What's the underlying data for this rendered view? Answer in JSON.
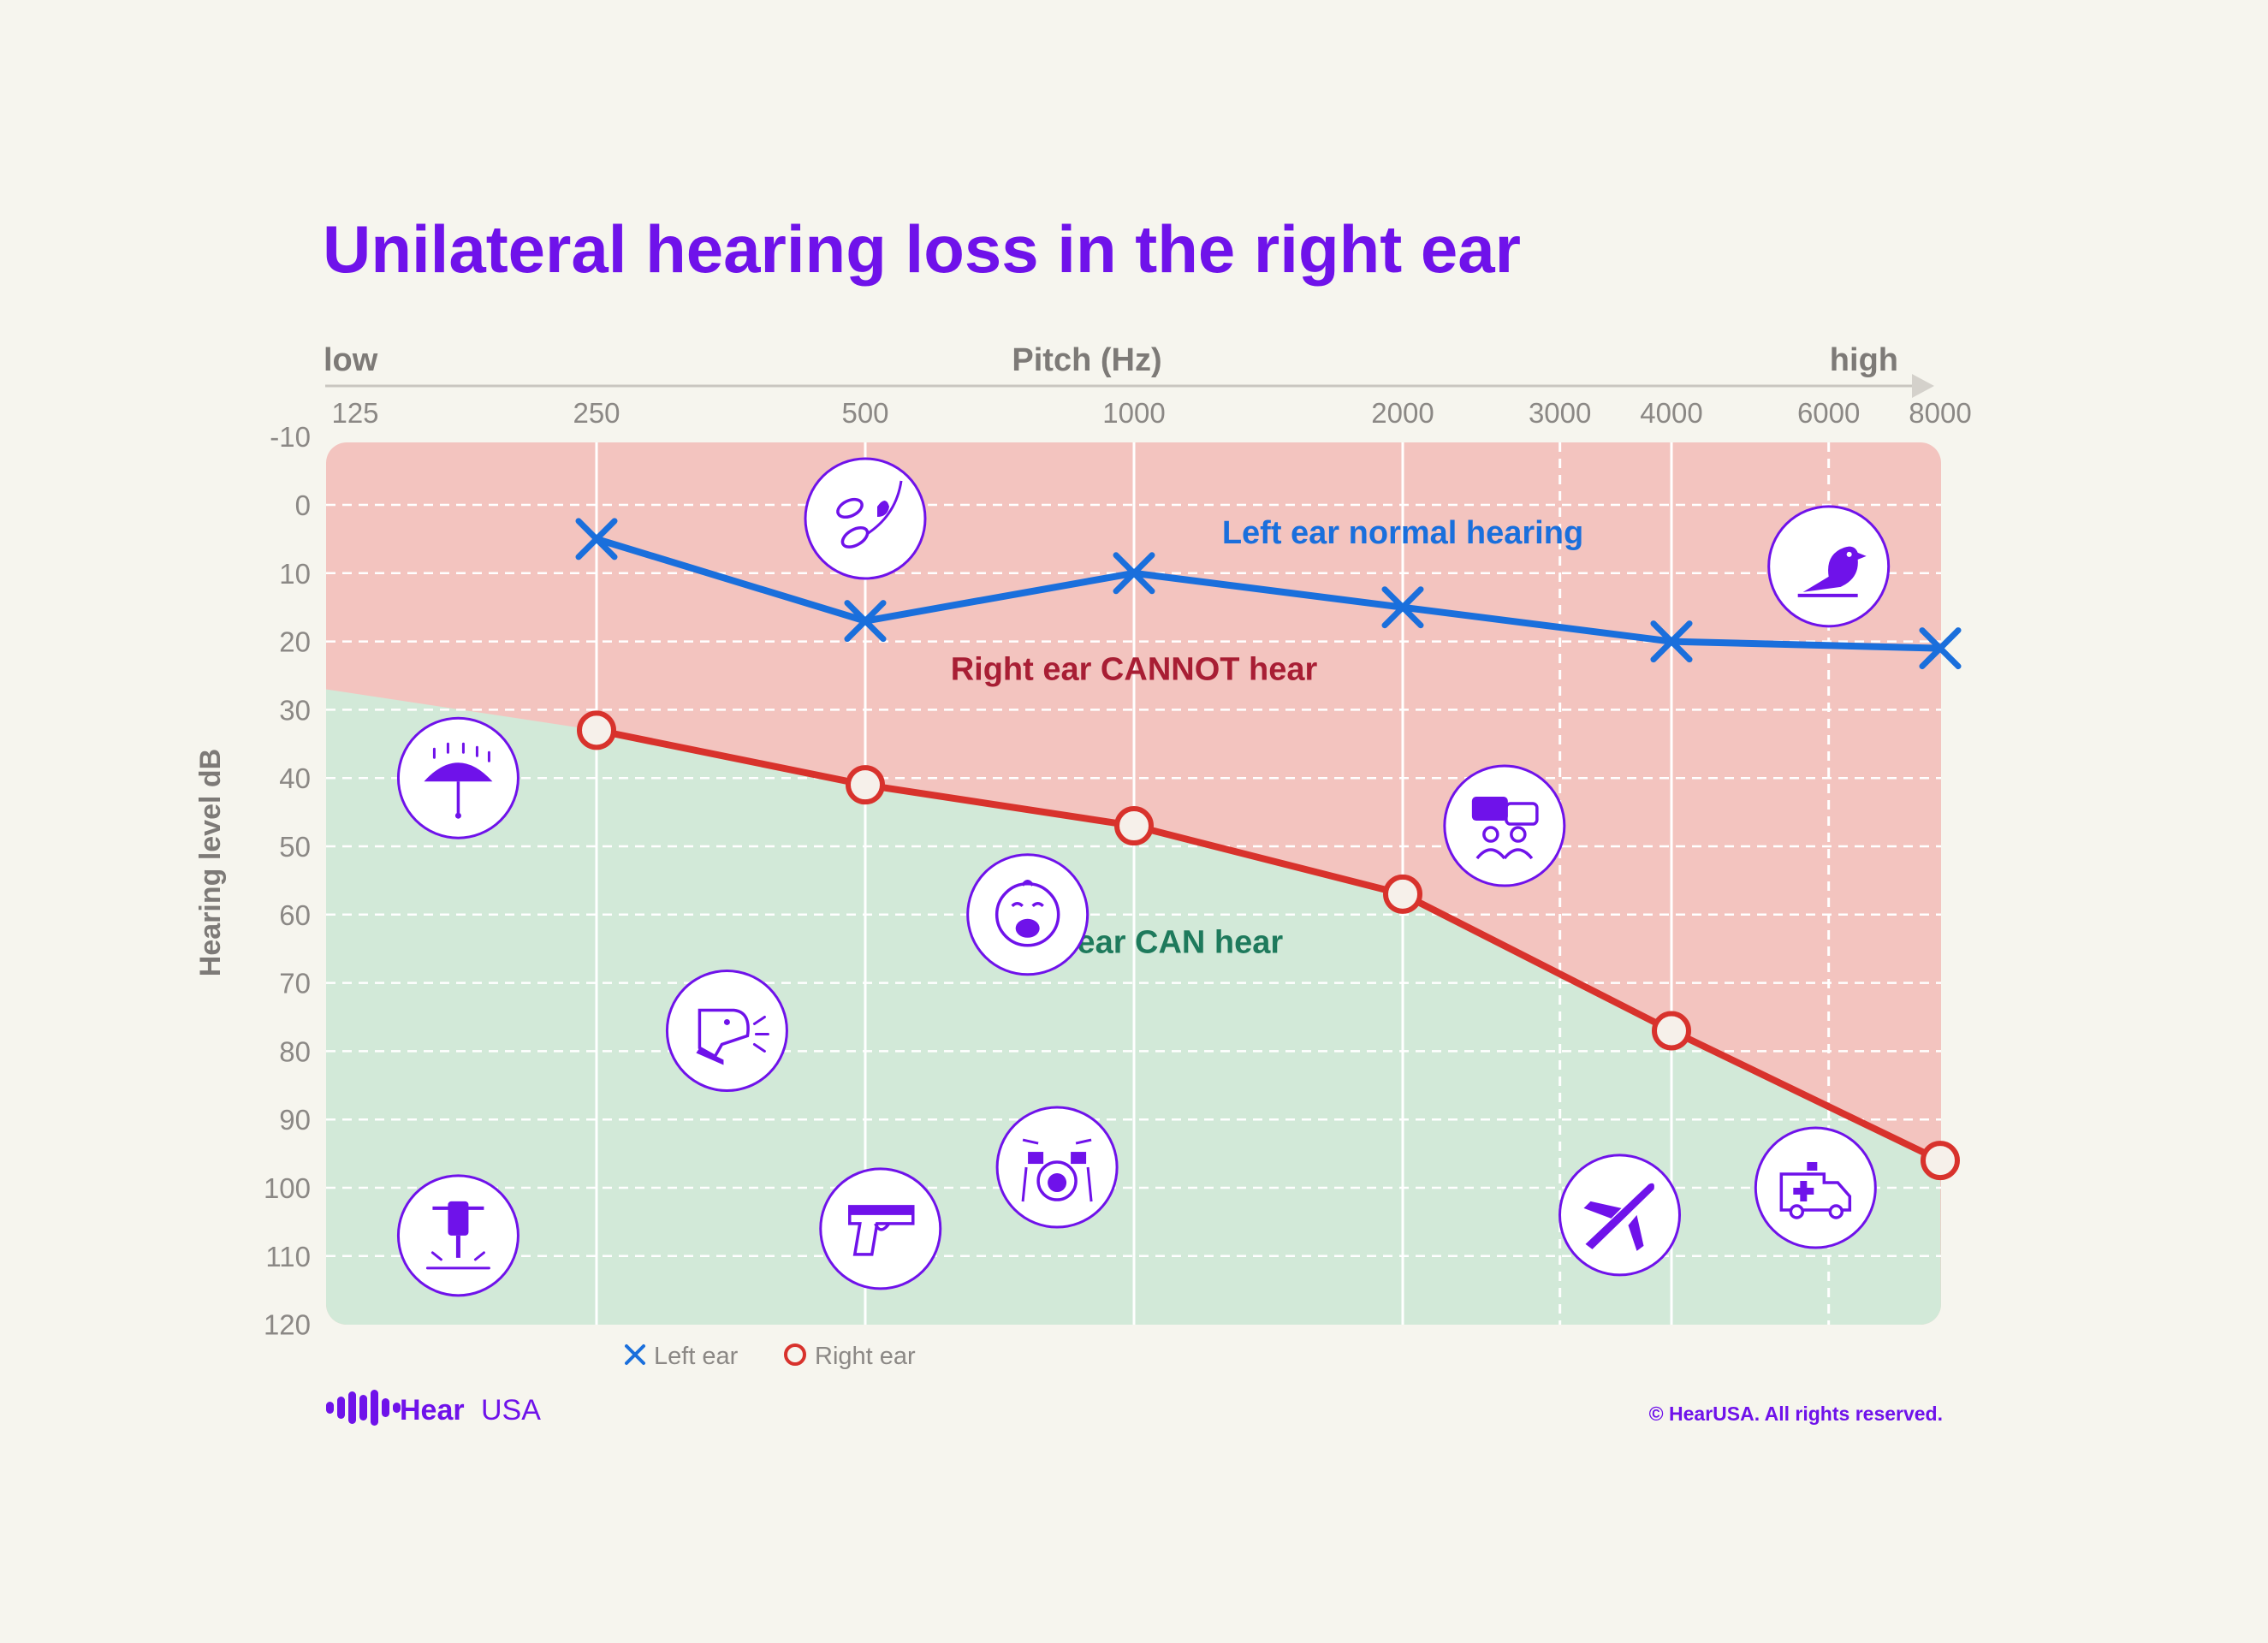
{
  "chart_data": {
    "type": "line",
    "title": "Unilateral hearing loss in the right ear",
    "xlabel": "Pitch (Hz)",
    "x_low_label": "low",
    "x_high_label": "high",
    "ylabel": "Hearing level dB",
    "x_ticks": [
      "125",
      "250",
      "500",
      "1000",
      "2000",
      "3000",
      "4000",
      "6000",
      "8000"
    ],
    "y_ticks": [
      "-10",
      "0",
      "10",
      "20",
      "30",
      "40",
      "50",
      "60",
      "70",
      "80",
      "90",
      "100",
      "110",
      "120"
    ],
    "ylim": [
      -10,
      120
    ],
    "y_inverted": true,
    "x_scale": "log",
    "series": [
      {
        "name": "Left ear",
        "marker": "x",
        "color": "#1a6fdc",
        "points": [
          [
            250,
            5
          ],
          [
            500,
            17
          ],
          [
            1000,
            10
          ],
          [
            2000,
            15
          ],
          [
            4000,
            20
          ],
          [
            8000,
            21
          ]
        ]
      },
      {
        "name": "Right ear",
        "marker": "o",
        "color": "#d8322c",
        "points": [
          [
            250,
            33
          ],
          [
            500,
            41
          ],
          [
            1000,
            47
          ],
          [
            2000,
            57
          ],
          [
            4000,
            77
          ],
          [
            8000,
            96
          ]
        ]
      }
    ],
    "regions": {
      "cannot_hear": {
        "label": "Right ear CANNOT hear",
        "color": "#f3c4bf",
        "label_color": "#a81e34",
        "label_at": [
          1000,
          24
        ]
      },
      "can_hear": {
        "label": "Right ear CAN hear",
        "color": "#d2e9d8",
        "label_color": "#1e7a5c",
        "label_at": [
          1000,
          64
        ],
        "boundary_start": [
          125,
          27
        ]
      }
    },
    "annotation": {
      "text": "Left ear normal hearing",
      "color": "#1a6fdc",
      "at": [
        2000,
        4
      ]
    },
    "icons": [
      {
        "name": "leaves-icon",
        "x": 500,
        "y": 2
      },
      {
        "name": "bird-icon",
        "x": 6000,
        "y": 9
      },
      {
        "name": "rain-umbrella-icon",
        "x": 175,
        "y": 40
      },
      {
        "name": "conversation-icon",
        "x": 2600,
        "y": 47
      },
      {
        "name": "crying-baby-icon",
        "x": 760,
        "y": 60
      },
      {
        "name": "barking-dog-icon",
        "x": 350,
        "y": 77
      },
      {
        "name": "drums-icon",
        "x": 820,
        "y": 97
      },
      {
        "name": "jackhammer-icon",
        "x": 175,
        "y": 107
      },
      {
        "name": "handgun-icon",
        "x": 520,
        "y": 106
      },
      {
        "name": "airplane-icon",
        "x": 3500,
        "y": 104
      },
      {
        "name": "ambulance-icon",
        "x": 5800,
        "y": 100
      }
    ],
    "legend": {
      "placement": "bottom-left",
      "entries": [
        "Left ear",
        "Right ear"
      ]
    },
    "grid": true
  },
  "footer": {
    "brand_word": "Hear",
    "brand_suffix": "USA",
    "copyright": "© HearUSA. All rights reserved."
  },
  "colors": {
    "title": "#6f12ea",
    "icon": "#6f12ea",
    "grid": "#ffffff"
  }
}
